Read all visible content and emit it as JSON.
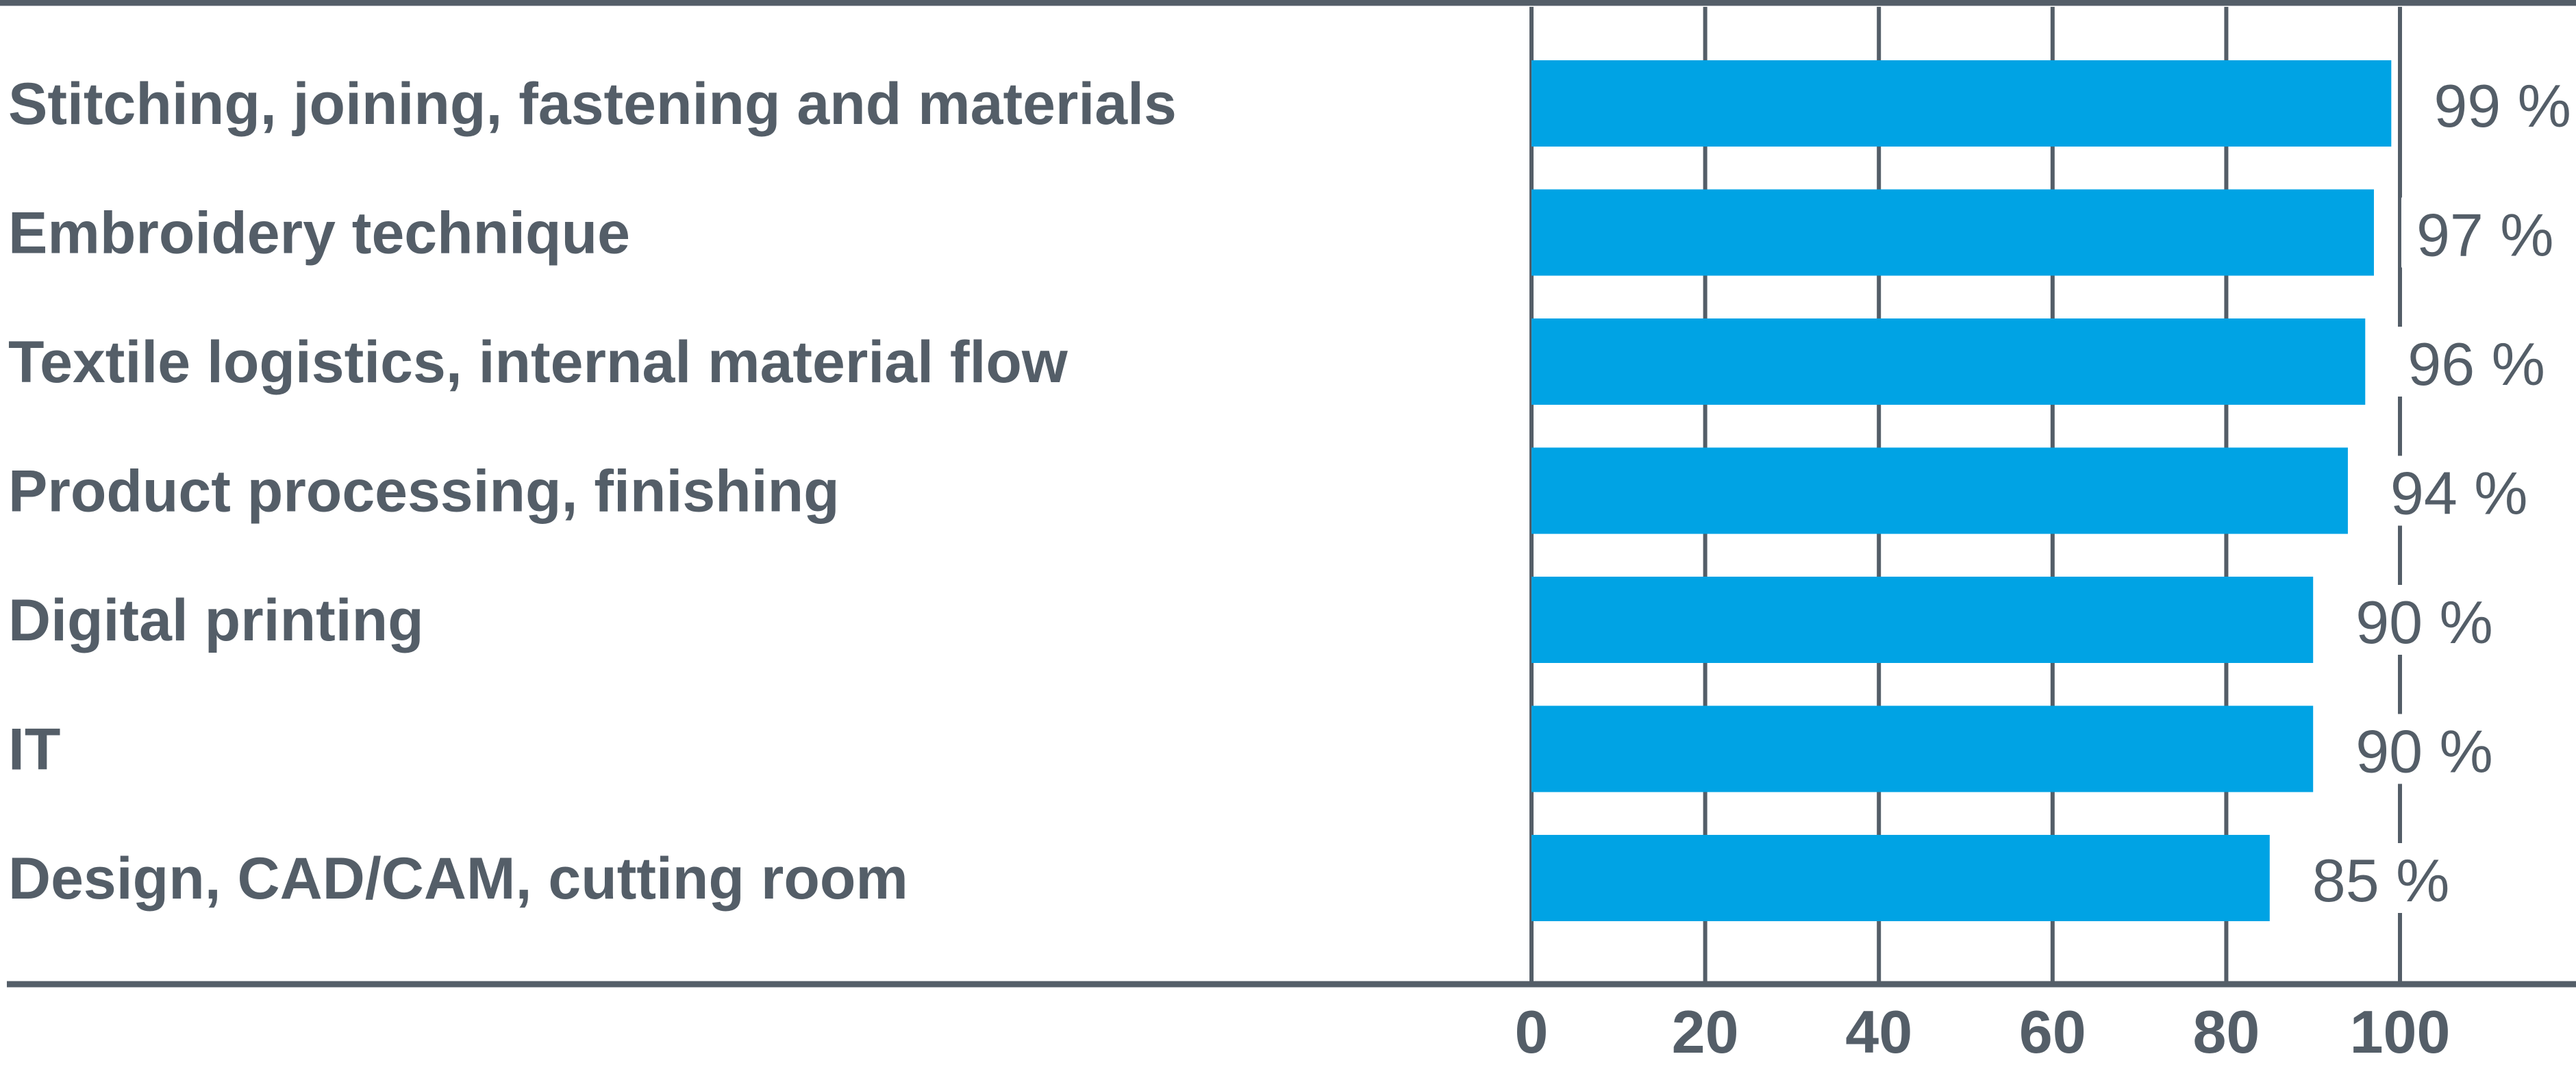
{
  "chart_data": {
    "type": "bar",
    "orientation": "horizontal",
    "categories": [
      "Stitching, joining, fastening and materials",
      "Embroidery technique",
      "Textile logistics, internal material flow",
      "Product processing, finishing",
      "Digital printing",
      "IT",
      "Design, CAD/CAM, cutting room"
    ],
    "values": [
      99,
      97,
      96,
      94,
      90,
      90,
      85
    ],
    "value_labels": [
      "99 %",
      "97 %",
      "96 %",
      "94 %",
      "90 %",
      "90 %",
      "85 %"
    ],
    "x_ticks": [
      "0",
      "20",
      "40",
      "60",
      "80",
      "100"
    ],
    "xlim": [
      0,
      120
    ],
    "grid": true,
    "title": "",
    "xlabel": "",
    "ylabel": "",
    "colors": {
      "bar": "#00a3e4",
      "text": "#545e68",
      "grid": "#545e68"
    }
  }
}
